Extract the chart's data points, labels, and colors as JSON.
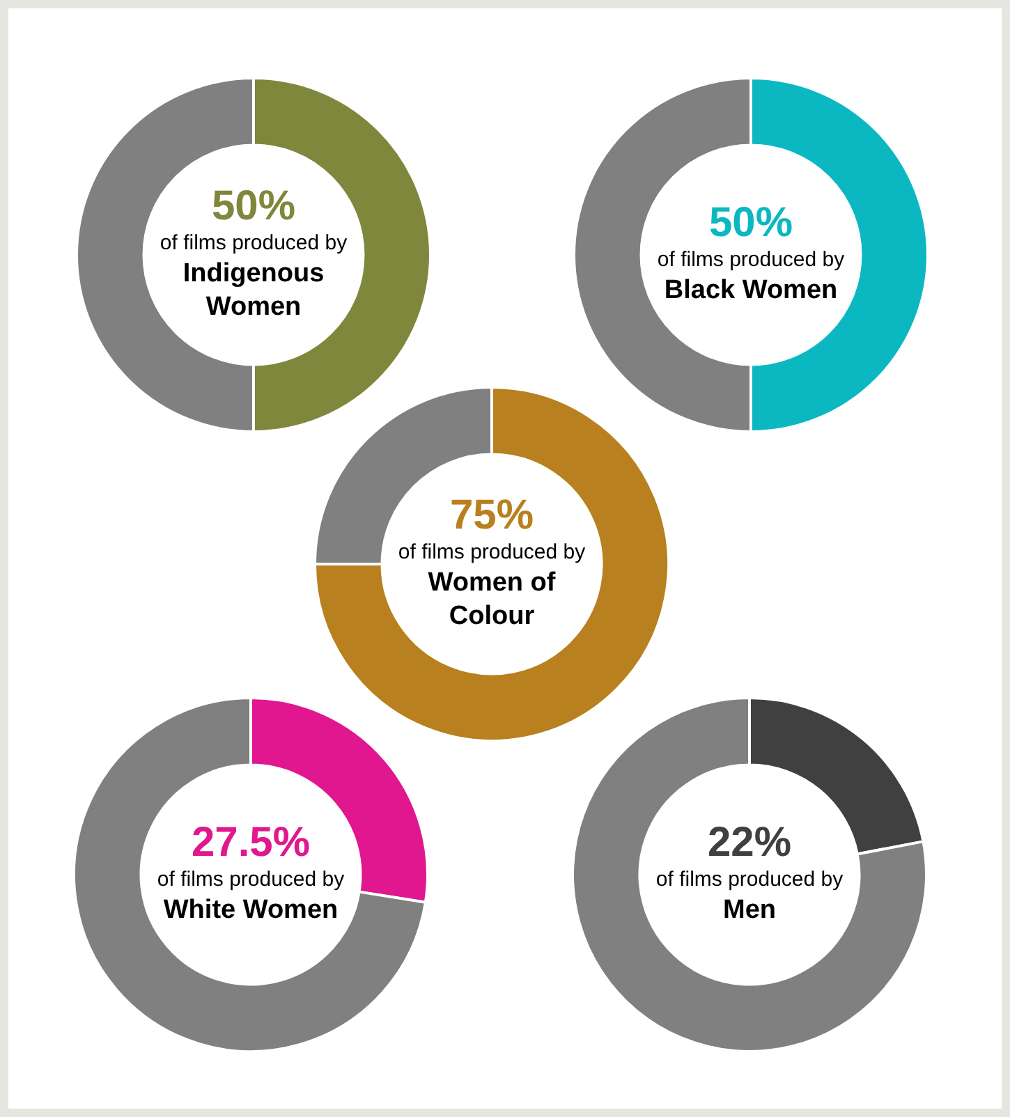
{
  "chart_data": [
    {
      "type": "donut",
      "title": "Indigenous Women",
      "subtitle": "of films produced by",
      "categories": [
        null,
        null
      ],
      "values": [
        50,
        50
      ],
      "colors": [
        "#7f873c",
        "#808080"
      ],
      "value_labels": [
        "50%",
        null
      ]
    },
    {
      "type": "donut",
      "title": "Black Women",
      "subtitle": "of films produced by",
      "categories": [
        null,
        null
      ],
      "values": [
        50,
        50
      ],
      "colors": [
        "#0bb8c2",
        "#808080"
      ],
      "value_labels": [
        "50%",
        null
      ]
    },
    {
      "type": "donut",
      "title": "Women of Colour",
      "subtitle": "of films produced by",
      "categories": [
        null,
        null
      ],
      "values": [
        75,
        25
      ],
      "colors": [
        "#b8801f",
        "#808080"
      ],
      "value_labels": [
        "75%",
        null
      ]
    },
    {
      "type": "donut",
      "title": "White Women",
      "subtitle": "of films produced by",
      "categories": [
        null,
        null
      ],
      "values": [
        27.5,
        72.5
      ],
      "colors": [
        "#e0178f",
        "#808080"
      ],
      "value_labels": [
        "27.5%",
        null
      ]
    },
    {
      "type": "donut",
      "title": "Men",
      "subtitle": "of films produced by",
      "categories": [
        null,
        null
      ],
      "values": [
        22,
        78
      ],
      "colors": [
        "#404040",
        "#808080"
      ],
      "value_labels": [
        "22%",
        null
      ]
    }
  ]
}
